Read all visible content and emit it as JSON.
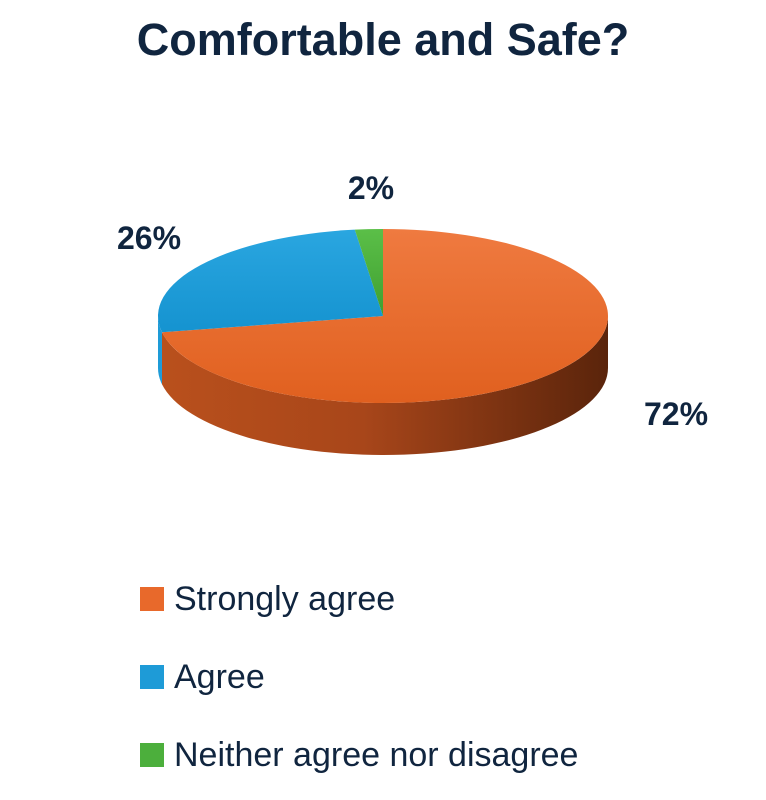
{
  "chart_data": {
    "type": "pie",
    "title": "Comfortable and Safe?",
    "categories": [
      "Strongly agree",
      "Agree",
      "Neither agree nor disagree"
    ],
    "values": [
      72,
      26,
      2
    ],
    "data_labels": [
      "72%",
      "26%",
      "2%"
    ],
    "colors": [
      "#E8692B",
      "#1E9BD7",
      "#4CAF3C"
    ],
    "style": "3d",
    "legend_position": "bottom"
  }
}
